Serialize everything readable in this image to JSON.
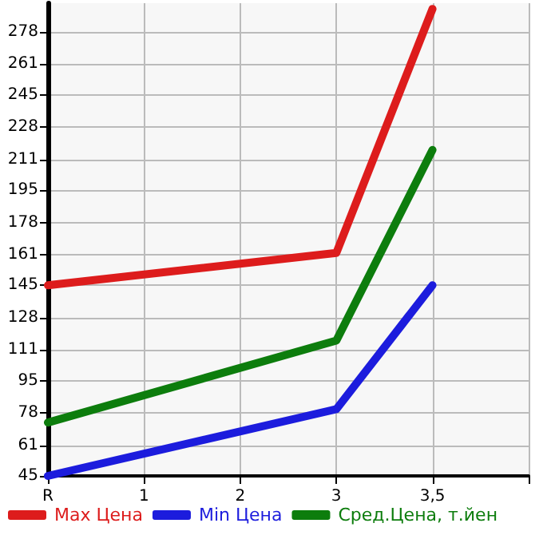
{
  "chart_data": {
    "type": "line",
    "categories": [
      "R",
      "1",
      "2",
      "3",
      "3,5",
      null
    ],
    "series": [
      {
        "name": "Max Цена",
        "color": "#dd1c1c",
        "values": [
          145,
          null,
          null,
          162,
          290,
          null
        ]
      },
      {
        "name": "Min Цена",
        "color": "#1c1cdd",
        "values": [
          45,
          null,
          null,
          80,
          145,
          null
        ]
      },
      {
        "name": "Сред.Цена, т.йен",
        "color": "#0d7d0d",
        "values": [
          73,
          null,
          null,
          116,
          216,
          null
        ]
      }
    ],
    "ylim": [
      45,
      293
    ],
    "yticks": [
      45,
      61,
      78,
      95,
      111,
      128,
      145,
      161,
      178,
      195,
      211,
      228,
      245,
      261,
      278
    ],
    "grid": true,
    "legend": "bottom",
    "marker": "none",
    "line_style": "solid"
  }
}
